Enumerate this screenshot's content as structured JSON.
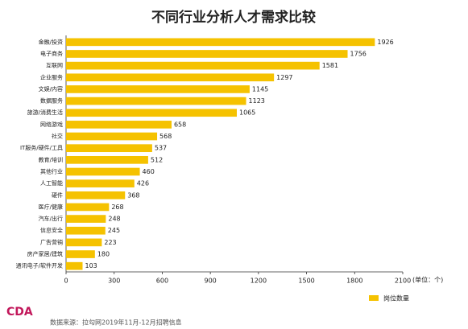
{
  "chart_data": {
    "type": "bar",
    "orientation": "horizontal",
    "title": "不同行业分析人才需求比较",
    "categories": [
      "金融/投资",
      "电子商务",
      "互联网",
      "企业服务",
      "文娱/内容",
      "数据服务",
      "旅游/消费生活",
      "网络游戏",
      "社交",
      "IT服务/硬件/工具",
      "教育/培训",
      "其他行业",
      "人工智能",
      "硬件",
      "医疗/健康",
      "汽车/出行",
      "信息安全",
      "广告营销",
      "房产家居/建筑",
      "通讯电子/软件开发"
    ],
    "series": [
      {
        "name": "岗位数量",
        "color": "#f5c200",
        "values": [
          1926,
          1756,
          1581,
          1297,
          1145,
          1123,
          1065,
          658,
          568,
          537,
          512,
          460,
          426,
          368,
          268,
          248,
          245,
          223,
          180,
          103
        ]
      }
    ],
    "xlim": [
      0,
      2100
    ],
    "xticks": [
      0,
      300,
      600,
      900,
      1200,
      1500,
      1800,
      2100
    ],
    "unit_label": "(单位：个)",
    "legend": "bottom-right",
    "source": "数据来源：拉勾网2019年11月-12月招聘信息",
    "logo": "CDA"
  }
}
